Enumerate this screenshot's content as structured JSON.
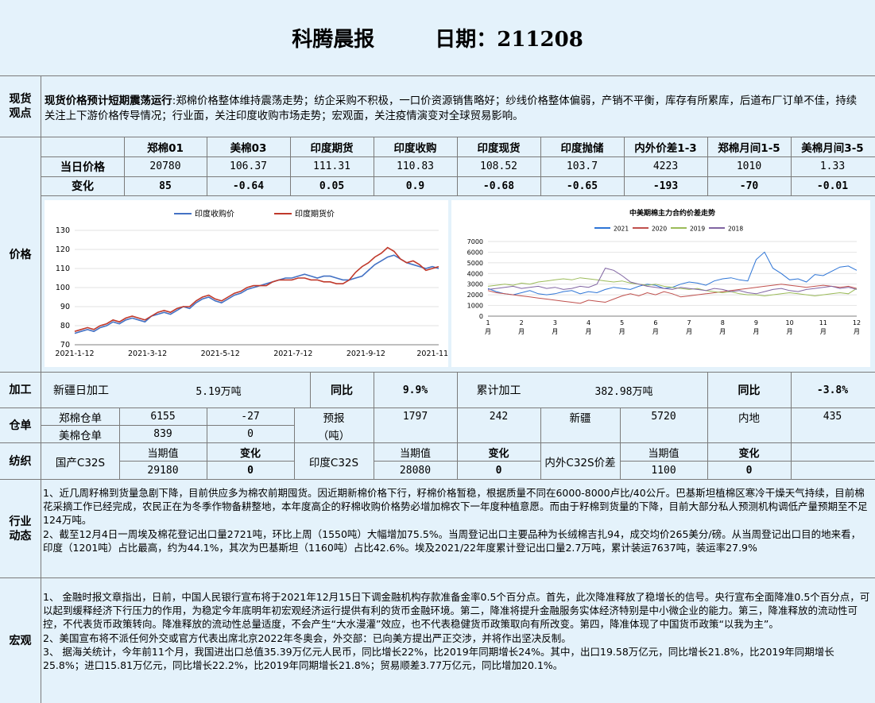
{
  "header": {
    "title": "科腾晨报",
    "date": "日期：211208"
  },
  "spot": {
    "label": "现货\n观点",
    "lead": "现货价格预计短期震荡运行",
    "body": ":郑棉价格整体维持震荡走势；纺企采购不积极，一口价资源销售略好；纱线价格整体偏弱，产销不平衡，库存有所累库，后道布厂订单不佳，持续关注上下游价格传导情况；行业面，关注印度收购市场走势；宏观面，关注疫情演变对全球贸易影响。"
  },
  "price": {
    "label": "价格",
    "headers": [
      "郑棉01",
      "美棉03",
      "印度期货",
      "印度收购",
      "印度现货",
      "印度抛储",
      "内外价差1-3",
      "郑棉月间1-5",
      "美棉月间3-5"
    ],
    "today_label": "当日价格",
    "change_label": "变化",
    "today": [
      "20780",
      "106.37",
      "111.31",
      "110.83",
      "108.52",
      "103.7",
      "4223",
      "1010",
      "1.33"
    ],
    "change": [
      "85",
      "-0.64",
      "0.05",
      "0.9",
      "-0.68",
      "-0.65",
      "-193",
      "-70",
      "-0.01"
    ]
  },
  "chart_data": [
    {
      "type": "line",
      "title": "",
      "legend": "top",
      "x_ticks": [
        "2021-1-12",
        "2021-3-12",
        "2021-5-12",
        "2021-7-12",
        "2021-9-12",
        "2021-11-12"
      ],
      "ylim": [
        70,
        130
      ],
      "y_ticks": [
        70,
        80,
        90,
        100,
        110,
        120,
        130
      ],
      "series": [
        {
          "name": "印度收购价",
          "color": "#4472c4",
          "values": [
            76,
            77,
            78,
            77,
            79,
            80,
            82,
            81,
            83,
            84,
            83,
            82,
            85,
            86,
            87,
            86,
            88,
            90,
            89,
            92,
            94,
            95,
            93,
            92,
            94,
            96,
            97,
            99,
            100,
            101,
            102,
            103,
            104,
            105,
            105,
            106,
            107,
            106,
            105,
            106,
            106,
            105,
            104,
            104,
            105,
            106,
            109,
            112,
            114,
            116,
            117,
            115,
            113,
            112,
            111,
            110,
            111,
            110
          ]
        },
        {
          "name": "印度期货价",
          "color": "#c0392b",
          "values": [
            77,
            78,
            79,
            78,
            80,
            81,
            83,
            82,
            84,
            85,
            84,
            83,
            85,
            87,
            88,
            87,
            89,
            90,
            90,
            93,
            95,
            96,
            94,
            93,
            95,
            97,
            98,
            100,
            101,
            101,
            101,
            103,
            104,
            104,
            104,
            105,
            105,
            104,
            104,
            103,
            103,
            102,
            102,
            104,
            108,
            111,
            113,
            116,
            118,
            121,
            119,
            115,
            113,
            114,
            112,
            109,
            110,
            111
          ]
        }
      ]
    },
    {
      "type": "line",
      "title": "中美期棉主力合约价差走势",
      "legend": "top",
      "x_ticks": [
        "1月",
        "2月",
        "3月",
        "4月",
        "5月",
        "6月",
        "7月",
        "8月",
        "9月",
        "10月",
        "11月",
        "12月"
      ],
      "ylim": [
        0,
        7000
      ],
      "y_ticks": [
        0,
        1000,
        2000,
        3000,
        4000,
        5000,
        6000,
        7000
      ],
      "series": [
        {
          "name": "2021",
          "color": "#2e75d6",
          "values": [
            2600,
            2300,
            2100,
            2000,
            2200,
            2400,
            2100,
            2000,
            2100,
            2300,
            2400,
            2100,
            2300,
            2200,
            2500,
            2700,
            2600,
            2500,
            2800,
            3000,
            2900,
            2600,
            2700,
            3000,
            3200,
            3100,
            2900,
            3300,
            3500,
            3600,
            3400,
            3300,
            5300,
            6000,
            4500,
            4000,
            3400,
            3500,
            3200,
            3900,
            3800,
            4200,
            4600,
            4700,
            4300
          ]
        },
        {
          "name": "2020",
          "color": "#c0504d",
          "values": [
            2400,
            2200,
            2100,
            2000,
            1900,
            1800,
            1700,
            1600,
            1500,
            1400,
            1300,
            1200,
            1500,
            1400,
            1300,
            1600,
            1900,
            2100,
            1900,
            2200,
            2000,
            2300,
            2100,
            1800,
            1900,
            2000,
            2100,
            2200,
            2300,
            2400,
            2500,
            2600,
            2700,
            2800,
            2900,
            3000,
            2900,
            2800,
            2700,
            2800,
            2900,
            2800,
            2700,
            2800,
            2600
          ]
        },
        {
          "name": "2019",
          "color": "#9bbb59",
          "values": [
            2800,
            2900,
            3000,
            2900,
            3100,
            3000,
            3200,
            3300,
            3400,
            3500,
            3400,
            3600,
            3500,
            3400,
            3300,
            3200,
            3300,
            3100,
            3000,
            2900,
            3000,
            2800,
            2700,
            2600,
            2500,
            2600,
            2400,
            2300,
            2200,
            2300,
            2100,
            2000,
            2000,
            1900,
            2000,
            2100,
            2200,
            2100,
            2000,
            1900,
            2000,
            2100,
            2200,
            2100,
            2600
          ]
        },
        {
          "name": "2018",
          "color": "#8064a2",
          "values": [
            2500,
            2600,
            2700,
            2800,
            2600,
            2700,
            2800,
            2600,
            2700,
            2500,
            2600,
            2800,
            2700,
            3000,
            4500,
            4300,
            3800,
            3200,
            3000,
            2800,
            2700,
            2600,
            2500,
            2700,
            2600,
            2500,
            2400,
            2600,
            2500,
            2300,
            2400,
            2200,
            2100,
            2300,
            2500,
            2600,
            2400,
            2300,
            2500,
            2600,
            2700,
            2800,
            2600,
            2700,
            2500
          ]
        }
      ]
    }
  ],
  "processing": {
    "label": "加工",
    "xinjiang_daily_label": "新疆日加工",
    "xinjiang_daily_value": "5.19万吨",
    "yoy_label": "同比",
    "yoy_value": "9.9%",
    "cumulative_label": "累计加工",
    "cumulative_value": "382.98万吨",
    "yoy2_label": "同比",
    "yoy2_value": "-3.8%"
  },
  "warehouse": {
    "label": "仓单",
    "zhengmian_label": "郑棉仓单",
    "zhengmian_value": "6155",
    "zhengmian_change": "-27",
    "yubao_label": "预报",
    "yubao_unit": "（吨）",
    "yubao_value": "1797",
    "yubao_change": "242",
    "xinjiang_label": "新疆",
    "xinjiang_value": "5720",
    "neidi_label": "内地",
    "neidi_value": "435",
    "meimian_label": "美棉仓单",
    "meimian_value": "839",
    "meimian_change": "0"
  },
  "textile": {
    "label": "纺织",
    "current_label": "当期值",
    "change_label": "变化",
    "domestic_label": "国产C32S",
    "domestic_value": "29180",
    "domestic_change": "0",
    "india_label": "印度C32S",
    "india_value": "28080",
    "india_change": "0",
    "spread_label": "内外C32S价差",
    "spread_value": "1100",
    "spread_change": "0"
  },
  "industry": {
    "label": "行业\n动态",
    "p1": "1、近几周籽棉到货量急剧下降，目前供应多为棉农前期囤货。因近期新棉价格下行，籽棉价格暂稳，根据质量不同在6000-8000卢比/40公斤。巴基斯坦植棉区寒冷干燥天气持续，目前棉花采摘工作已经完成，农民正在为冬季作物备耕整地，本年度高企的籽棉收购价格势必增加棉农下一年度种植意愿。而由于籽棉到货量的下降，目前大部分私人预测机构调低产量预期至不足124万吨。",
    "p2": "2、截至12月4日一周埃及棉花登记出口量2721吨，环比上周（1550吨）大幅增加75.5%。当周登记出口主要品种为长绒棉吉扎94，成交均价265美分/磅。从当周登记出口目的地来看，印度（1201吨）占比最高，约为44.1%，其次为巴基斯坦（1160吨）占比42.6%。埃及2021/22年度累计登记出口量2.7万吨，累计装运7637吨，装运率27.9%"
  },
  "macro": {
    "label": "宏观",
    "p1": "1、  金融时报文章指出，日前，中国人民银行宣布将于2021年12月15日下调金融机构存款准备金率0.5个百分点。首先，此次降准释放了稳增长的信号。央行宣布全面降准0.5个百分点，可以起到缓释经济下行压力的作用，为稳定今年底明年初宏观经济运行提供有利的货币金融环境。第二，降准将提升金融服务实体经济特别是中小微企业的能力。第三，降准释放的流动性可控，不代表货币政策转向。降准释放的流动性总量适度，不会产生“大水漫灌”效应，也不代表稳健货币政策取向有所改变。第四，降准体现了中国货币政策“以我为主”。",
    "p2": "2、美国宣布将不派任何外交或官方代表出席北京2022年冬奥会，外交部：已向美方提出严正交涉，并将作出坚决反制。",
    "p3": "3、  据海关统计，今年前11个月，我国进出口总值35.39万亿元人民币，同比增长22%，比2019年同期增长24%。其中，出口19.58万亿元，同比增长21.8%，比2019年同期增长25.8%；进口15.81万亿元，同比增长22.2%，比2019年同期增长21.8%；贸易顺差3.77万亿元，同比增加20.1%。"
  }
}
